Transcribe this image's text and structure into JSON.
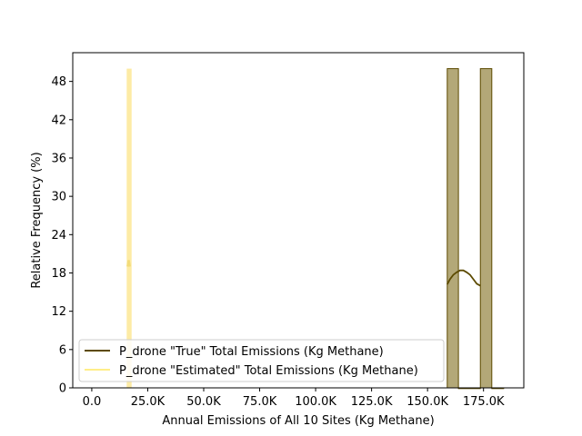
{
  "chart_data": {
    "type": "histogram",
    "title": "",
    "xlabel": "Annual Emissions of All 10 Sites (Kg Methane)",
    "ylabel": "Relative Frequency (%)",
    "xlim": [
      -8500,
      193000
    ],
    "ylim": [
      0,
      52.5
    ],
    "x_ticks": [
      {
        "value": 0,
        "label": "0.0"
      },
      {
        "value": 25000,
        "label": "25.0K"
      },
      {
        "value": 50000,
        "label": "50.0K"
      },
      {
        "value": 75000,
        "label": "75.0K"
      },
      {
        "value": 100000,
        "label": "100.0K"
      },
      {
        "value": 125000,
        "label": "125.0K"
      },
      {
        "value": 150000,
        "label": "150.0K"
      },
      {
        "value": 175000,
        "label": "175.0K"
      }
    ],
    "y_ticks": [
      {
        "value": 0,
        "label": "0"
      },
      {
        "value": 6,
        "label": "6"
      },
      {
        "value": 12,
        "label": "12"
      },
      {
        "value": 18,
        "label": "18"
      },
      {
        "value": 24,
        "label": "24"
      },
      {
        "value": 30,
        "label": "30"
      },
      {
        "value": 36,
        "label": "36"
      },
      {
        "value": 42,
        "label": "42"
      },
      {
        "value": 48,
        "label": "48"
      }
    ],
    "grid": false,
    "legend_position": "lower-left",
    "series": [
      {
        "name": "P_drone \"True\" Total Emissions (Kg Methane)",
        "color": "#5c4a00",
        "fill": "#b3a878",
        "bars": [
          {
            "x0": 158800,
            "x1": 163800,
            "value": 50
          },
          {
            "x0": 163800,
            "x1": 173600,
            "value": 0
          },
          {
            "x0": 173600,
            "x1": 178700,
            "value": 50
          },
          {
            "x0": 178700,
            "x1": 184000,
            "value": 0
          }
        ],
        "kde": [
          [
            158800,
            16.2
          ],
          [
            160000,
            17.0
          ],
          [
            161500,
            17.7
          ],
          [
            163000,
            18.1
          ],
          [
            164500,
            18.4
          ],
          [
            166000,
            18.4
          ],
          [
            167500,
            18.1
          ],
          [
            169000,
            17.7
          ],
          [
            170500,
            17.0
          ],
          [
            172000,
            16.3
          ],
          [
            173600,
            16.0
          ]
        ]
      },
      {
        "name": "P_drone \"Estimated\" Total Emissions (Kg Methane)",
        "color": "#ffee88",
        "fill": "#fdeaa0",
        "bars": [
          {
            "x0": 15600,
            "x1": 17800,
            "value": 50
          }
        ],
        "kde": [
          [
            16000,
            19.0
          ],
          [
            16500,
            20.0
          ],
          [
            17000,
            19.0
          ]
        ]
      }
    ]
  }
}
